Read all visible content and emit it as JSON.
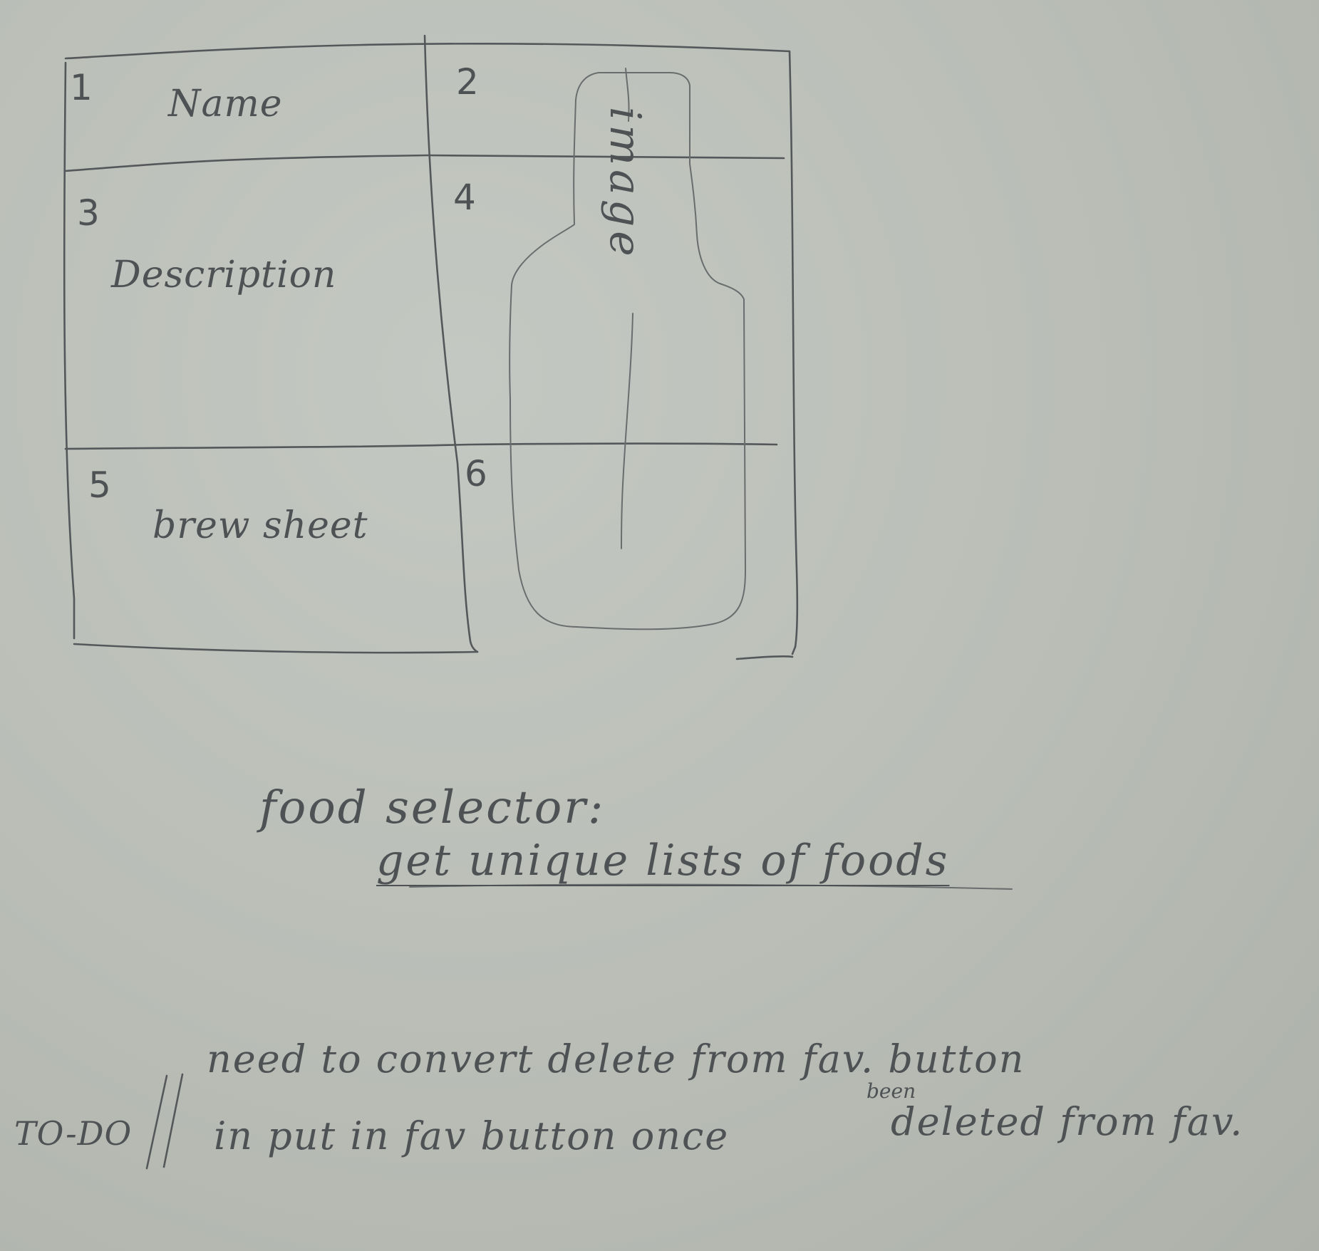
{
  "wireframe": {
    "cells": [
      {
        "number": "1",
        "label": "Name"
      },
      {
        "number": "2",
        "label": ""
      },
      {
        "number": "3",
        "label": "Description"
      },
      {
        "number": "4",
        "label": ""
      },
      {
        "number": "5",
        "label": "brew sheet"
      },
      {
        "number": "6",
        "label": ""
      }
    ],
    "image_label": "image"
  },
  "notes": {
    "title": "food selector:",
    "subtitle": "get unique lists of foods"
  },
  "todo": {
    "tag": "TO-DO",
    "separator": "||",
    "line1": "need to convert delete from fav. button",
    "line2_start": "in put in fav button once",
    "inserted_word": "been",
    "line2_end": "deleted from fav."
  }
}
